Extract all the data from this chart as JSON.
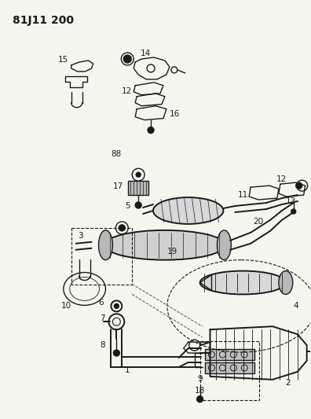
{
  "title": "81J11 200",
  "bg_color": "#f5f5f0",
  "text_color": "#1a1a1a",
  "title_fontsize": 10,
  "label_fontsize": 7.5,
  "figsize": [
    3.96,
    5.33
  ],
  "dpi": 100
}
